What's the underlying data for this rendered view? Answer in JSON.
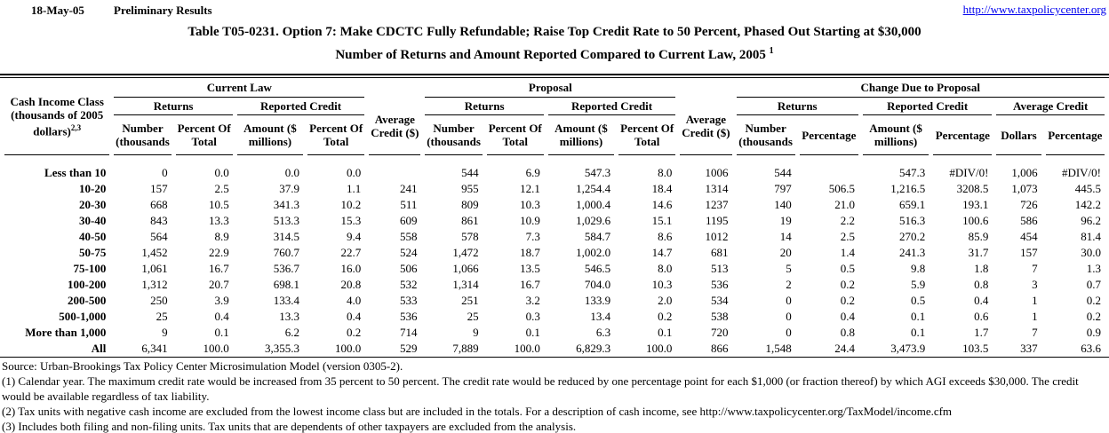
{
  "header": {
    "date": "18-May-05",
    "status": "Preliminary Results",
    "link": "http://www.taxpolicycenter.org"
  },
  "title": {
    "line1": "Table T05-0231. Option 7: Make CDCTC Fully Refundable; Raise Top Credit Rate to 50 Percent, Phased Out Starting at $30,000",
    "line2": "Number of Returns and Amount Reported Compared to Current Law, 2005",
    "line2_sup": "1"
  },
  "table": {
    "income_header": {
      "line1": "Cash Income Class",
      "line2": "(thousands of 2005",
      "line3": "dollars)",
      "sup": "2,3"
    },
    "groups": {
      "current_law": "Current Law",
      "proposal": "Proposal",
      "change": "Change Due to Proposal"
    },
    "subgroups": {
      "returns": "Returns",
      "reported_credit": "Reported Credit",
      "average_credit_dollars": "Average Credit ($)",
      "average_credit": "Average Credit"
    },
    "columns": {
      "number_thousands": "Number (thousands",
      "percent_of_total": "Percent Of Total",
      "amount_millions": "Amount ($ millions)",
      "percentage": "Percentage",
      "dollars": "Dollars"
    },
    "rows": [
      {
        "label": "Less than 10",
        "cells": [
          "0",
          "0.0",
          "0.0",
          "0.0",
          "",
          "544",
          "6.9",
          "547.3",
          "8.0",
          "1006",
          "544",
          "",
          "547.3",
          "#DIV/0!",
          "1,006",
          "#DIV/0!"
        ]
      },
      {
        "label": "10-20",
        "cells": [
          "157",
          "2.5",
          "37.9",
          "1.1",
          "241",
          "955",
          "12.1",
          "1,254.4",
          "18.4",
          "1314",
          "797",
          "506.5",
          "1,216.5",
          "3208.5",
          "1,073",
          "445.5"
        ]
      },
      {
        "label": "20-30",
        "cells": [
          "668",
          "10.5",
          "341.3",
          "10.2",
          "511",
          "809",
          "10.3",
          "1,000.4",
          "14.6",
          "1237",
          "140",
          "21.0",
          "659.1",
          "193.1",
          "726",
          "142.2"
        ]
      },
      {
        "label": "30-40",
        "cells": [
          "843",
          "13.3",
          "513.3",
          "15.3",
          "609",
          "861",
          "10.9",
          "1,029.6",
          "15.1",
          "1195",
          "19",
          "2.2",
          "516.3",
          "100.6",
          "586",
          "96.2"
        ]
      },
      {
        "label": "40-50",
        "cells": [
          "564",
          "8.9",
          "314.5",
          "9.4",
          "558",
          "578",
          "7.3",
          "584.7",
          "8.6",
          "1012",
          "14",
          "2.5",
          "270.2",
          "85.9",
          "454",
          "81.4"
        ]
      },
      {
        "label": "50-75",
        "cells": [
          "1,452",
          "22.9",
          "760.7",
          "22.7",
          "524",
          "1,472",
          "18.7",
          "1,002.0",
          "14.7",
          "681",
          "20",
          "1.4",
          "241.3",
          "31.7",
          "157",
          "30.0"
        ]
      },
      {
        "label": "75-100",
        "cells": [
          "1,061",
          "16.7",
          "536.7",
          "16.0",
          "506",
          "1,066",
          "13.5",
          "546.5",
          "8.0",
          "513",
          "5",
          "0.5",
          "9.8",
          "1.8",
          "7",
          "1.3"
        ]
      },
      {
        "label": "100-200",
        "cells": [
          "1,312",
          "20.7",
          "698.1",
          "20.8",
          "532",
          "1,314",
          "16.7",
          "704.0",
          "10.3",
          "536",
          "2",
          "0.2",
          "5.9",
          "0.8",
          "3",
          "0.7"
        ]
      },
      {
        "label": "200-500",
        "cells": [
          "250",
          "3.9",
          "133.4",
          "4.0",
          "533",
          "251",
          "3.2",
          "133.9",
          "2.0",
          "534",
          "0",
          "0.2",
          "0.5",
          "0.4",
          "1",
          "0.2"
        ]
      },
      {
        "label": "500-1,000",
        "cells": [
          "25",
          "0.4",
          "13.3",
          "0.4",
          "536",
          "25",
          "0.3",
          "13.4",
          "0.2",
          "538",
          "0",
          "0.4",
          "0.1",
          "0.6",
          "1",
          "0.2"
        ]
      },
      {
        "label": "More than 1,000",
        "cells": [
          "9",
          "0.1",
          "6.2",
          "0.2",
          "714",
          "9",
          "0.1",
          "6.3",
          "0.1",
          "720",
          "0",
          "0.8",
          "0.1",
          "1.7",
          "7",
          "0.9"
        ]
      },
      {
        "label": "All",
        "cells": [
          "6,341",
          "100.0",
          "3,355.3",
          "100.0",
          "529",
          "7,889",
          "100.0",
          "6,829.3",
          "100.0",
          "866",
          "1,548",
          "24.4",
          "3,473.9",
          "103.5",
          "337",
          "63.6"
        ]
      }
    ]
  },
  "footnotes": {
    "source": "Source: Urban-Brookings Tax Policy Center Microsimulation Model (version 0305-2).",
    "fn1": "(1) Calendar year. The maximum credit rate would be increased from 35 percent to 50 percent.  The credit rate would be reduced by one percentage point for each $1,000 (or fraction thereof) by which AGI exceeds $30,000.  The credit would be available regardless of tax liability.",
    "fn2": "(2) Tax units with negative cash income are excluded from the lowest income class but are included in the totals. For a description of cash income, see http://www.taxpolicycenter.org/TaxModel/income.cfm",
    "fn3": "(3) Includes both filing and non-filing units.  Tax units that are dependents of other taxpayers are excluded from the analysis."
  }
}
